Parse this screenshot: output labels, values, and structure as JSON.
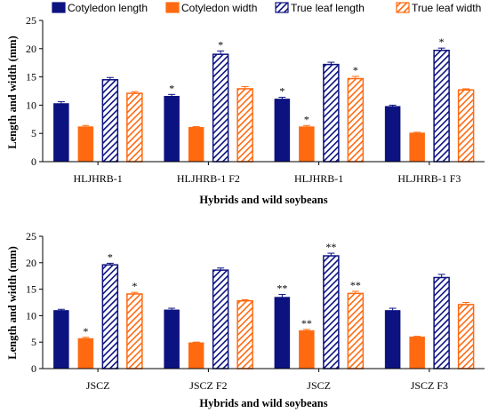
{
  "legend": {
    "placement": "top",
    "items": [
      {
        "label": "Cotyledon length",
        "color": "#0c1280",
        "pattern": "solid"
      },
      {
        "label": "Cotyledon width",
        "color": "#ff6a10",
        "pattern": "solid"
      },
      {
        "label": "True leaf length",
        "color": "#0c1280",
        "pattern": "hatched"
      },
      {
        "label": "True leaf width",
        "color": "#ff6a10",
        "pattern": "hatched"
      }
    ]
  },
  "chart_data": [
    {
      "type": "bar",
      "xlabel": "Hybrids and wild soybeans",
      "ylabel": "Length and width (mm)",
      "ylim": [
        0,
        25
      ],
      "yticks": [
        "0",
        "5",
        "10",
        "15",
        "20",
        "25"
      ],
      "grid": false,
      "categories": [
        "HLJHRB-1",
        "HLJHRB-1 F2",
        "HLJHRB-1",
        "HLJHRB-1 F3"
      ],
      "series": [
        {
          "name": "Cotyledon length",
          "values": [
            10.3,
            11.6,
            11.1,
            9.8
          ],
          "errors": [
            0.3,
            0.3,
            0.3,
            0.2
          ],
          "marks": [
            "",
            "*",
            "*",
            ""
          ]
        },
        {
          "name": "Cotyledon width",
          "values": [
            6.2,
            6.1,
            6.2,
            5.1
          ],
          "errors": [
            0.2,
            0.1,
            0.2,
            0.1
          ],
          "marks": [
            "",
            "",
            "*",
            ""
          ]
        },
        {
          "name": "True leaf length",
          "values": [
            14.5,
            19.0,
            17.2,
            19.7
          ],
          "errors": [
            0.4,
            0.6,
            0.4,
            0.4
          ],
          "marks": [
            "",
            "*",
            "",
            "*"
          ]
        },
        {
          "name": "True leaf width",
          "values": [
            12.1,
            12.9,
            14.7,
            12.7
          ],
          "errors": [
            0.3,
            0.4,
            0.4,
            0.2
          ],
          "marks": [
            "",
            "",
            "*",
            ""
          ]
        }
      ]
    },
    {
      "type": "bar",
      "xlabel": "Hybrids and wild soybeans",
      "ylabel": "Length and width (mm)",
      "ylim": [
        0,
        25
      ],
      "yticks": [
        "0",
        "5",
        "10",
        "15",
        "20",
        "25"
      ],
      "grid": false,
      "categories": [
        "JSCZ",
        "JSCZ F2",
        "JSCZ",
        "JSCZ F3"
      ],
      "series": [
        {
          "name": "Cotyledon length",
          "values": [
            11.0,
            11.1,
            13.5,
            11.0
          ],
          "errors": [
            0.2,
            0.3,
            0.5,
            0.4
          ],
          "marks": [
            "",
            "",
            "**",
            ""
          ]
        },
        {
          "name": "Cotyledon width",
          "values": [
            5.7,
            4.9,
            7.2,
            6.0
          ],
          "errors": [
            0.2,
            0.1,
            0.2,
            0.1
          ],
          "marks": [
            "*",
            "",
            "**",
            ""
          ]
        },
        {
          "name": "True leaf length",
          "values": [
            19.6,
            18.6,
            21.3,
            17.2
          ],
          "errors": [
            0.3,
            0.4,
            0.5,
            0.6
          ],
          "marks": [
            "*",
            "",
            "**",
            ""
          ]
        },
        {
          "name": "True leaf width",
          "values": [
            14.1,
            12.8,
            14.2,
            12.1
          ],
          "errors": [
            0.3,
            0.2,
            0.4,
            0.4
          ],
          "marks": [
            "*",
            "",
            "**",
            ""
          ]
        }
      ]
    }
  ]
}
